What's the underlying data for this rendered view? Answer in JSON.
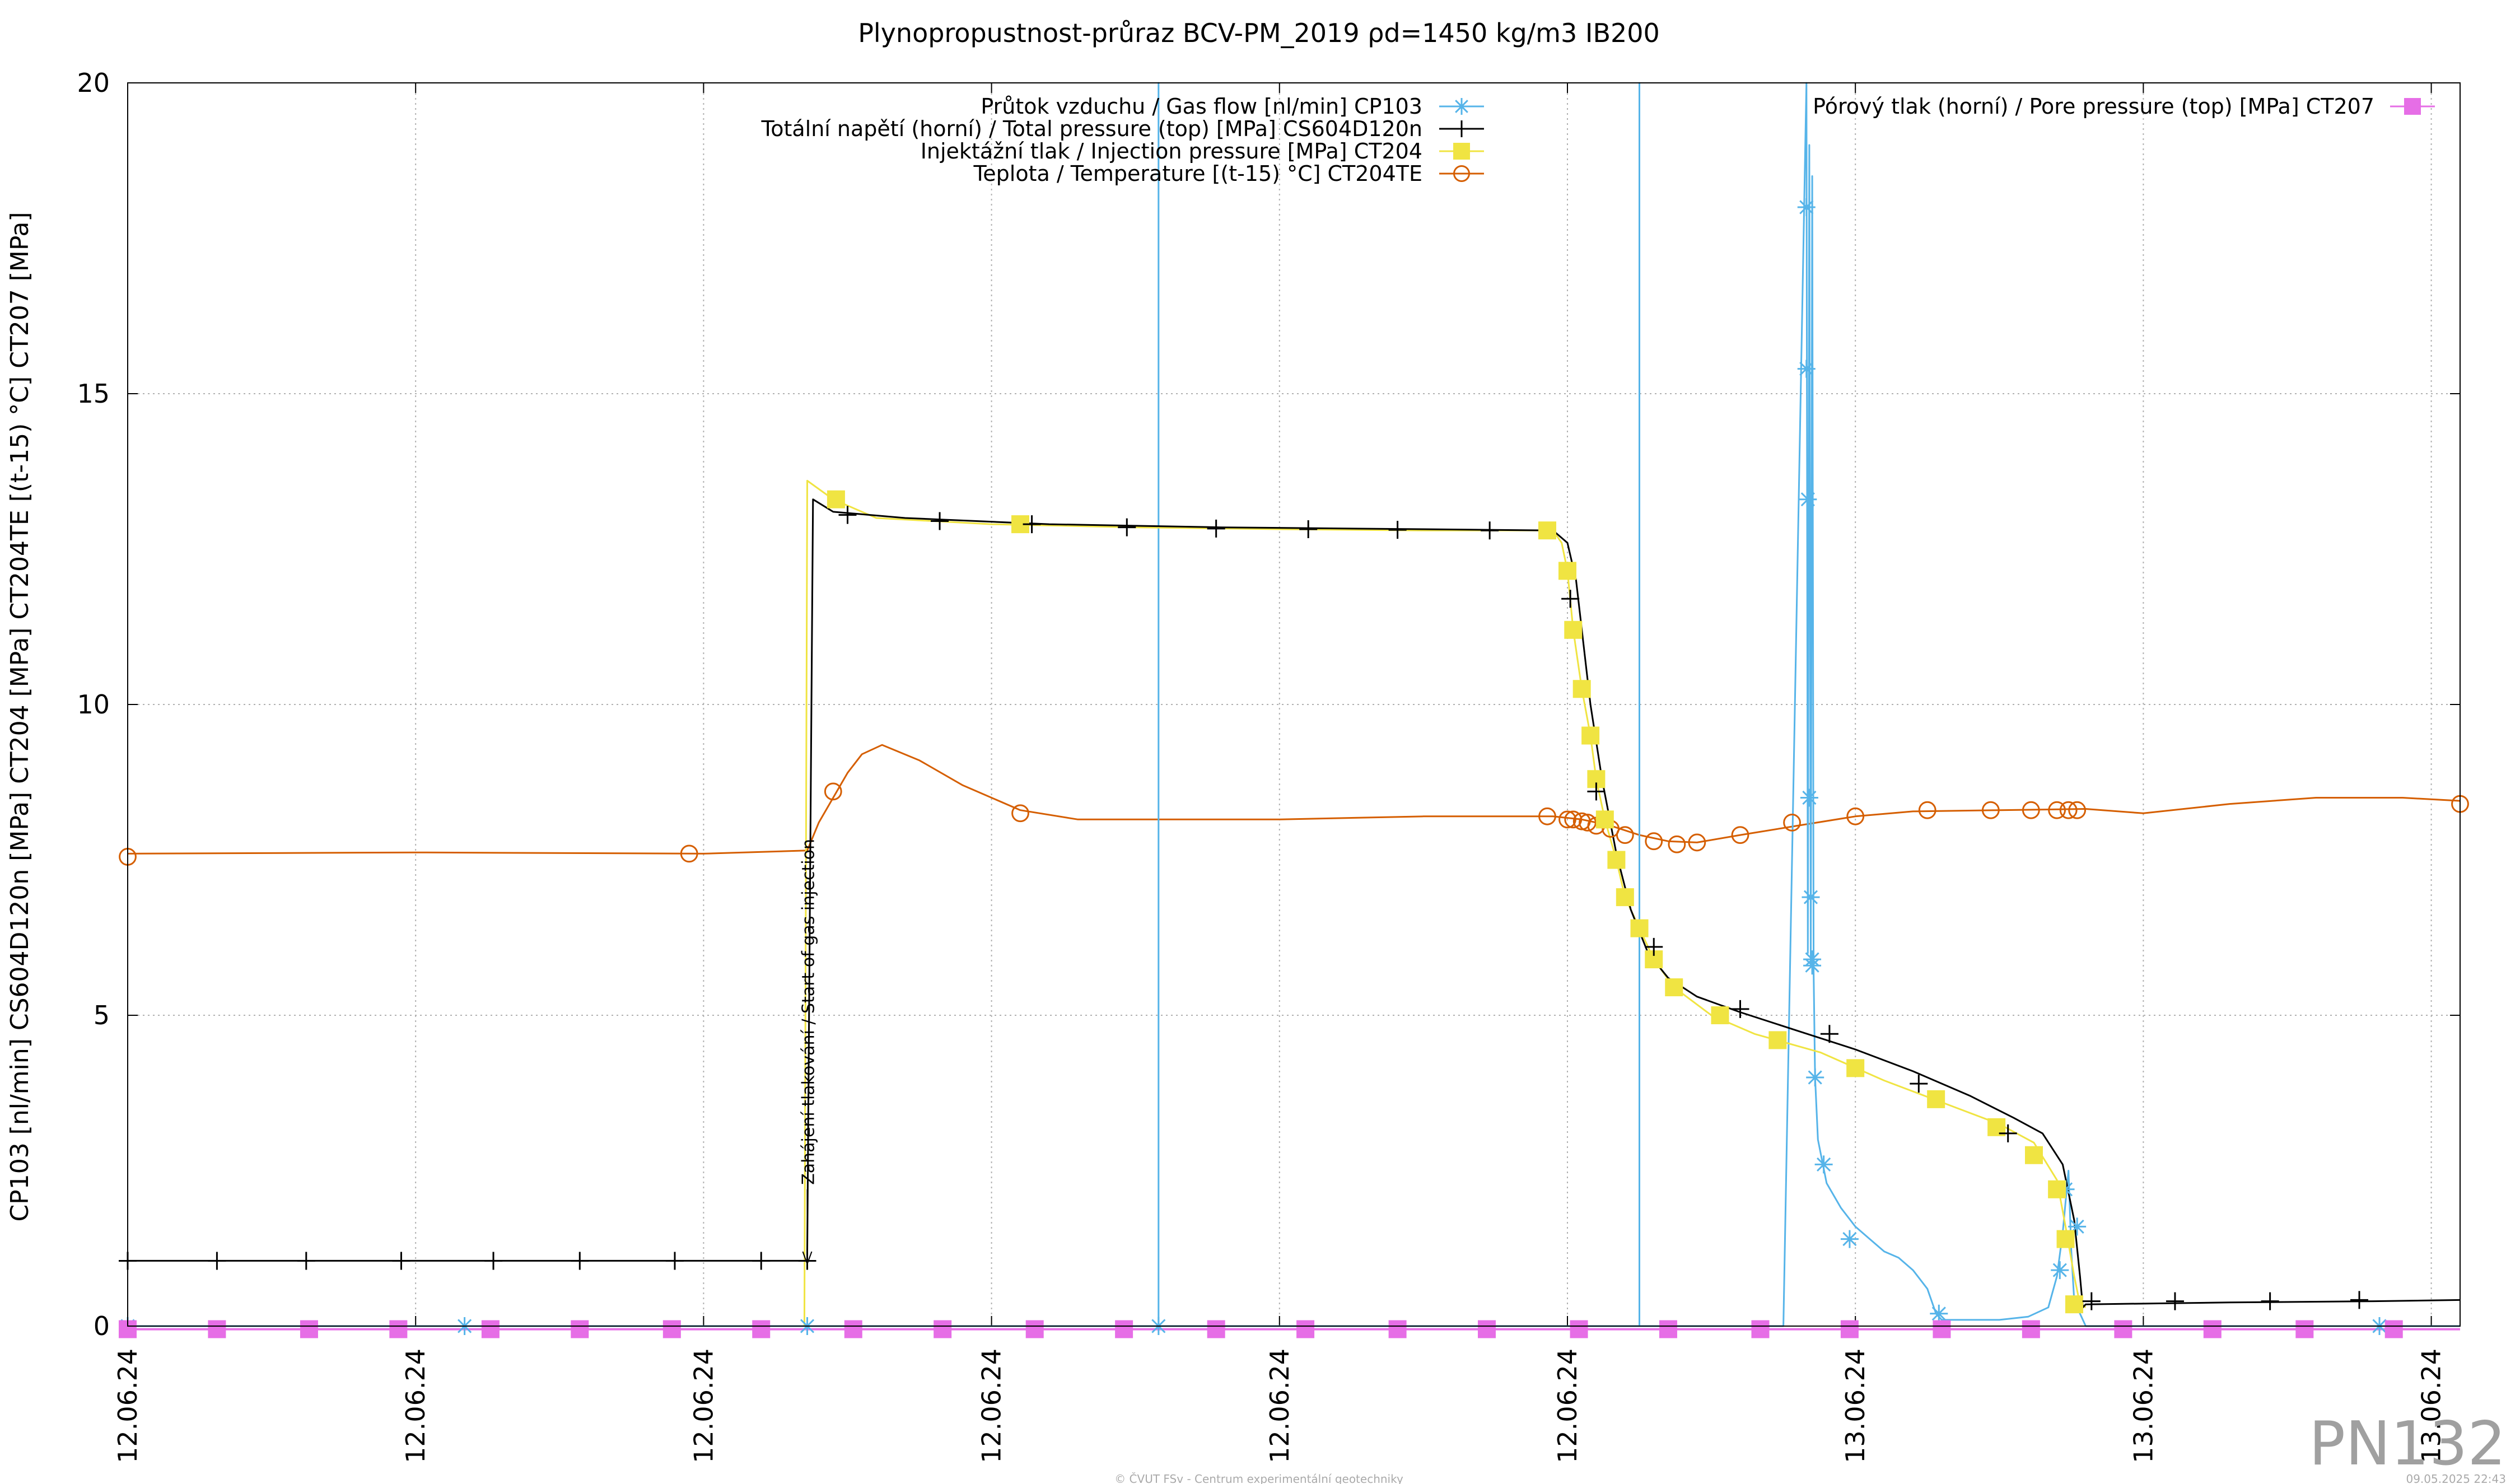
{
  "chart_data": {
    "type": "line",
    "title": "Plynopropustnost-průraz BCV-PM_2019 ρd=1450 kg/m3 IB200",
    "ylabel": "CP103 [nl/min] CS604D120n [MPa] CT204 [MPa] CT204TE [(t-15) °C] CT207 [MPa]",
    "xlabel": "",
    "xlim": [
      0,
      8.1
    ],
    "ylim": [
      0,
      20
    ],
    "grid": true,
    "legend_left_position": "top-center",
    "legend_right_position": "top-right",
    "y_ticks": [
      "0",
      "5",
      "10",
      "15",
      "20"
    ],
    "x_tick_labels": [
      {
        "x": 0.0,
        "label": "12.06.24"
      },
      {
        "x": 1.0,
        "label": "12.06.24"
      },
      {
        "x": 2.0,
        "label": "12.06.24"
      },
      {
        "x": 3.0,
        "label": "12.06.24"
      },
      {
        "x": 4.0,
        "label": "12.06.24"
      },
      {
        "x": 5.0,
        "label": "12.06.24"
      },
      {
        "x": 6.0,
        "label": "13.06.24"
      },
      {
        "x": 7.0,
        "label": "13.06.24"
      },
      {
        "x": 8.0,
        "label": "13.06.24"
      }
    ],
    "annotation": {
      "text": "Zahájení tlakování / Start of gas injection",
      "x": 2.36,
      "y_from": 2.2,
      "y_to": 1.0
    },
    "series": [
      {
        "name": "Průtok vzduchu / Gas flow [nl/min] CP103",
        "color": "#56b4e9",
        "marker": "asterisk",
        "points": [
          [
            0,
            0
          ],
          [
            3.58,
            0
          ],
          [
            3.58,
            20
          ],
          [
            3.58,
            0
          ],
          [
            5.25,
            0
          ],
          [
            5.25,
            15.8
          ],
          [
            5.25,
            20
          ],
          [
            5.25,
            0
          ],
          [
            5.75,
            0
          ],
          [
            5.83,
            20
          ],
          [
            5.835,
            6
          ],
          [
            5.84,
            19
          ],
          [
            5.845,
            5.8
          ],
          [
            5.85,
            18.5
          ],
          [
            5.855,
            5.7
          ],
          [
            5.86,
            4
          ],
          [
            5.87,
            3
          ],
          [
            5.9,
            2.3
          ],
          [
            5.95,
            1.9
          ],
          [
            6.0,
            1.6
          ],
          [
            6.05,
            1.4
          ],
          [
            6.1,
            1.2
          ],
          [
            6.15,
            1.1
          ],
          [
            6.2,
            0.9
          ],
          [
            6.25,
            0.6
          ],
          [
            6.28,
            0.2
          ],
          [
            6.3,
            0.1
          ],
          [
            6.5,
            0.1
          ],
          [
            6.6,
            0.15
          ],
          [
            6.67,
            0.3
          ],
          [
            6.7,
            0.8
          ],
          [
            6.72,
            1.5
          ],
          [
            6.74,
            2.5
          ],
          [
            6.75,
            1.2
          ],
          [
            6.76,
            0.4
          ],
          [
            6.78,
            0.2
          ],
          [
            6.8,
            0
          ],
          [
            8.1,
            0
          ]
        ],
        "marker_points": [
          [
            0,
            0
          ],
          [
            1.17,
            0
          ],
          [
            2.36,
            0
          ],
          [
            3.58,
            0
          ],
          [
            5.83,
            18
          ],
          [
            5.83,
            15.4
          ],
          [
            5.835,
            13.3
          ],
          [
            5.84,
            8.5
          ],
          [
            5.845,
            6.9
          ],
          [
            5.85,
            5.9
          ],
          [
            5.85,
            5.8
          ],
          [
            5.86,
            4
          ],
          [
            5.89,
            2.6
          ],
          [
            5.98,
            1.4
          ],
          [
            6.29,
            0.2
          ],
          [
            6.71,
            0.9
          ],
          [
            6.73,
            2.2
          ],
          [
            6.77,
            1.6
          ],
          [
            7.82,
            0
          ]
        ]
      },
      {
        "name": "Totální napětí (horní) / Total pressure (top) [MPa] CS604D120n",
        "color": "#000000",
        "marker": "plus",
        "points": [
          [
            0,
            1.05
          ],
          [
            2.36,
            1.05
          ],
          [
            2.36,
            1.2
          ],
          [
            2.38,
            13.3
          ],
          [
            2.45,
            13.1
          ],
          [
            2.7,
            13.0
          ],
          [
            3.2,
            12.9
          ],
          [
            3.8,
            12.85
          ],
          [
            4.5,
            12.82
          ],
          [
            4.95,
            12.8
          ],
          [
            5.0,
            12.6
          ],
          [
            5.03,
            12.0
          ],
          [
            5.05,
            11.2
          ],
          [
            5.08,
            10.0
          ],
          [
            5.12,
            8.8
          ],
          [
            5.17,
            7.6
          ],
          [
            5.22,
            6.7
          ],
          [
            5.28,
            6.0
          ],
          [
            5.35,
            5.6
          ],
          [
            5.45,
            5.3
          ],
          [
            5.6,
            5.05
          ],
          [
            5.8,
            4.75
          ],
          [
            6.0,
            4.45
          ],
          [
            6.2,
            4.1
          ],
          [
            6.4,
            3.7
          ],
          [
            6.55,
            3.35
          ],
          [
            6.65,
            3.1
          ],
          [
            6.72,
            2.6
          ],
          [
            6.76,
            1.7
          ],
          [
            6.78,
            0.8
          ],
          [
            6.79,
            0.3
          ],
          [
            6.8,
            0.35
          ],
          [
            7.3,
            0.38
          ],
          [
            7.8,
            0.4
          ],
          [
            8.1,
            0.42
          ]
        ],
        "marker_points": [
          [
            0,
            1.05
          ],
          [
            0.31,
            1.05
          ],
          [
            0.62,
            1.05
          ],
          [
            0.95,
            1.05
          ],
          [
            1.27,
            1.05
          ],
          [
            1.57,
            1.05
          ],
          [
            1.9,
            1.05
          ],
          [
            2.2,
            1.05
          ],
          [
            2.36,
            1.05
          ],
          [
            2.5,
            13.05
          ],
          [
            2.82,
            12.95
          ],
          [
            3.14,
            12.9
          ],
          [
            3.47,
            12.85
          ],
          [
            3.78,
            12.83
          ],
          [
            4.1,
            12.82
          ],
          [
            4.41,
            12.81
          ],
          [
            4.73,
            12.8
          ],
          [
            5.01,
            11.7
          ],
          [
            5.1,
            8.6
          ],
          [
            5.3,
            6.1
          ],
          [
            5.6,
            5.1
          ],
          [
            5.91,
            4.7
          ],
          [
            6.22,
            3.9
          ],
          [
            6.53,
            3.1
          ],
          [
            6.82,
            0.4
          ],
          [
            7.11,
            0.4
          ],
          [
            7.44,
            0.4
          ],
          [
            7.75,
            0.42
          ]
        ]
      },
      {
        "name": "Injektážní tlak / Injection pressure [MPa] CT204",
        "color": "#f0e442",
        "marker": "square",
        "points": [
          [
            2.35,
            0
          ],
          [
            2.36,
            13.6
          ],
          [
            2.45,
            13.3
          ],
          [
            2.6,
            13.0
          ],
          [
            3.0,
            12.9
          ],
          [
            3.5,
            12.85
          ],
          [
            4.0,
            12.82
          ],
          [
            4.5,
            12.8
          ],
          [
            4.95,
            12.8
          ],
          [
            4.98,
            12.6
          ],
          [
            5.0,
            12.15
          ],
          [
            5.02,
            11.2
          ],
          [
            5.05,
            10.25
          ],
          [
            5.08,
            9.5
          ],
          [
            5.1,
            8.8
          ],
          [
            5.13,
            8.15
          ],
          [
            5.17,
            7.5
          ],
          [
            5.2,
            6.9
          ],
          [
            5.25,
            6.4
          ],
          [
            5.3,
            5.9
          ],
          [
            5.37,
            5.45
          ],
          [
            5.5,
            5.0
          ],
          [
            5.65,
            4.7
          ],
          [
            5.88,
            4.4
          ],
          [
            6.1,
            3.95
          ],
          [
            6.3,
            3.6
          ],
          [
            6.5,
            3.25
          ],
          [
            6.62,
            2.95
          ],
          [
            6.7,
            2.35
          ],
          [
            6.73,
            1.6
          ],
          [
            6.76,
            0.8
          ],
          [
            6.78,
            0.35
          ],
          [
            6.8,
            0.3
          ]
        ],
        "marker_points": [
          [
            2.46,
            13.3
          ],
          [
            3.1,
            12.9
          ],
          [
            4.93,
            12.8
          ],
          [
            5.0,
            12.15
          ],
          [
            5.02,
            11.2
          ],
          [
            5.05,
            10.25
          ],
          [
            5.08,
            9.5
          ],
          [
            5.1,
            8.8
          ],
          [
            5.13,
            8.15
          ],
          [
            5.17,
            7.5
          ],
          [
            5.2,
            6.9
          ],
          [
            5.25,
            6.4
          ],
          [
            5.3,
            5.9
          ],
          [
            5.37,
            5.45
          ],
          [
            5.53,
            5.0
          ],
          [
            5.73,
            4.6
          ],
          [
            6.0,
            4.15
          ],
          [
            6.28,
            3.65
          ],
          [
            6.49,
            3.2
          ],
          [
            6.62,
            2.75
          ],
          [
            6.7,
            2.2
          ],
          [
            6.73,
            1.4
          ],
          [
            6.76,
            0.35
          ]
        ]
      },
      {
        "name": "Teplota / Temperature [(t-15) °C] CT204TE",
        "color": "#d55e00",
        "marker": "circle",
        "points": [
          [
            0,
            7.6
          ],
          [
            1.0,
            7.62
          ],
          [
            2.0,
            7.6
          ],
          [
            2.36,
            7.65
          ],
          [
            2.4,
            8.1
          ],
          [
            2.5,
            8.9
          ],
          [
            2.55,
            9.2
          ],
          [
            2.62,
            9.35
          ],
          [
            2.75,
            9.1
          ],
          [
            2.9,
            8.7
          ],
          [
            3.0,
            8.5
          ],
          [
            3.1,
            8.3
          ],
          [
            3.3,
            8.15
          ],
          [
            3.6,
            8.15
          ],
          [
            4.0,
            8.15
          ],
          [
            4.5,
            8.2
          ],
          [
            4.95,
            8.2
          ],
          [
            5.05,
            8.15
          ],
          [
            5.15,
            8.05
          ],
          [
            5.25,
            7.9
          ],
          [
            5.35,
            7.8
          ],
          [
            5.45,
            7.78
          ],
          [
            5.6,
            7.9
          ],
          [
            5.8,
            8.05
          ],
          [
            6.0,
            8.2
          ],
          [
            6.2,
            8.28
          ],
          [
            6.5,
            8.3
          ],
          [
            6.8,
            8.32
          ],
          [
            7.0,
            8.25
          ],
          [
            7.3,
            8.4
          ],
          [
            7.6,
            8.5
          ],
          [
            7.9,
            8.5
          ],
          [
            8.1,
            8.45
          ]
        ],
        "marker_points": [
          [
            0,
            7.55
          ],
          [
            1.95,
            7.6
          ],
          [
            2.45,
            8.6
          ],
          [
            3.1,
            8.25
          ],
          [
            4.93,
            8.2
          ],
          [
            5.0,
            8.15
          ],
          [
            5.02,
            8.15
          ],
          [
            5.05,
            8.12
          ],
          [
            5.07,
            8.1
          ],
          [
            5.1,
            8.05
          ],
          [
            5.15,
            8.0
          ],
          [
            5.2,
            7.9
          ],
          [
            5.3,
            7.8
          ],
          [
            5.38,
            7.75
          ],
          [
            5.45,
            7.78
          ],
          [
            5.6,
            7.9
          ],
          [
            5.78,
            8.1
          ],
          [
            6.0,
            8.2
          ],
          [
            6.25,
            8.3
          ],
          [
            6.47,
            8.3
          ],
          [
            6.61,
            8.3
          ],
          [
            6.7,
            8.3
          ],
          [
            6.74,
            8.3
          ],
          [
            6.77,
            8.3
          ],
          [
            8.1,
            8.4
          ]
        ]
      },
      {
        "name": "Pórový tlak (horní) / Pore pressure (top) [MPa] CT207",
        "color": "#e66ee6",
        "marker": "square",
        "points": [
          [
            0,
            -0.05
          ],
          [
            8.1,
            -0.05
          ]
        ],
        "marker_points": [
          [
            0,
            -0.05
          ],
          [
            0.31,
            -0.05
          ],
          [
            0.63,
            -0.05
          ],
          [
            0.94,
            -0.05
          ],
          [
            1.26,
            -0.05
          ],
          [
            1.57,
            -0.05
          ],
          [
            1.89,
            -0.05
          ],
          [
            2.2,
            -0.05
          ],
          [
            2.52,
            -0.05
          ],
          [
            2.83,
            -0.05
          ],
          [
            3.15,
            -0.05
          ],
          [
            3.46,
            -0.05
          ],
          [
            3.78,
            -0.05
          ],
          [
            4.09,
            -0.05
          ],
          [
            4.41,
            -0.05
          ],
          [
            4.72,
            -0.05
          ],
          [
            5.04,
            -0.05
          ],
          [
            5.35,
            -0.05
          ],
          [
            5.67,
            -0.05
          ],
          [
            5.98,
            -0.05
          ],
          [
            6.3,
            -0.05
          ],
          [
            6.61,
            -0.05
          ],
          [
            6.93,
            -0.05
          ],
          [
            7.24,
            -0.05
          ],
          [
            7.56,
            -0.05
          ],
          [
            7.87,
            -0.05
          ]
        ]
      }
    ]
  },
  "footer": {
    "copyright": "© ČVUT FSv - Centrum experimentální geotechniky",
    "timestamp": "09.05.2025 22:43",
    "watermark": "PN132"
  }
}
